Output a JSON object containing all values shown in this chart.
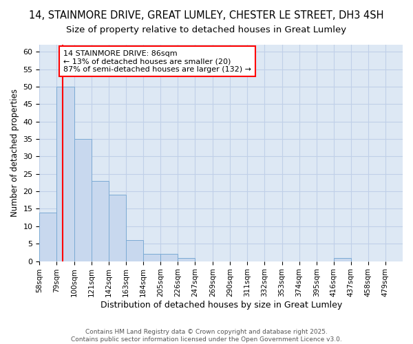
{
  "title1": "14, STAINMORE DRIVE, GREAT LUMLEY, CHESTER LE STREET, DH3 4SH",
  "title2": "Size of property relative to detached houses in Great Lumley",
  "xlabel": "Distribution of detached houses by size in Great Lumley",
  "ylabel": "Number of detached properties",
  "bin_labels": [
    "58sqm",
    "79sqm",
    "100sqm",
    "121sqm",
    "142sqm",
    "163sqm",
    "184sqm",
    "205sqm",
    "226sqm",
    "247sqm",
    "269sqm",
    "290sqm",
    "311sqm",
    "332sqm",
    "353sqm",
    "374sqm",
    "395sqm",
    "416sqm",
    "437sqm",
    "458sqm",
    "479sqm"
  ],
  "bin_edges": [
    58,
    79,
    100,
    121,
    142,
    163,
    184,
    205,
    226,
    247,
    269,
    290,
    311,
    332,
    353,
    374,
    395,
    416,
    437,
    458,
    479,
    500
  ],
  "counts": [
    14,
    50,
    35,
    23,
    19,
    6,
    2,
    2,
    1,
    0,
    0,
    0,
    0,
    0,
    0,
    0,
    0,
    1,
    0,
    0,
    0
  ],
  "bar_facecolor": "#c8d8ee",
  "bar_edgecolor": "#7baad4",
  "red_line_x": 86,
  "annotation_text": "14 STAINMORE DRIVE: 86sqm\n← 13% of detached houses are smaller (20)\n87% of semi-detached houses are larger (132) →",
  "annotation_box_color": "white",
  "annotation_box_edgecolor": "red",
  "ylim": [
    0,
    62
  ],
  "yticks": [
    0,
    5,
    10,
    15,
    20,
    25,
    30,
    35,
    40,
    45,
    50,
    55,
    60
  ],
  "grid_color": "#c0d0e8",
  "background_color": "#dde8f4",
  "fig_background": "white",
  "footer_text": "Contains HM Land Registry data © Crown copyright and database right 2025.\nContains public sector information licensed under the Open Government Licence v3.0.",
  "title1_fontsize": 10.5,
  "title2_fontsize": 9.5,
  "annotation_fontsize": 8,
  "footer_fontsize": 6.5,
  "xlabel_fontsize": 9,
  "ylabel_fontsize": 8.5,
  "tick_fontsize": 7.5,
  "ytick_fontsize": 8
}
